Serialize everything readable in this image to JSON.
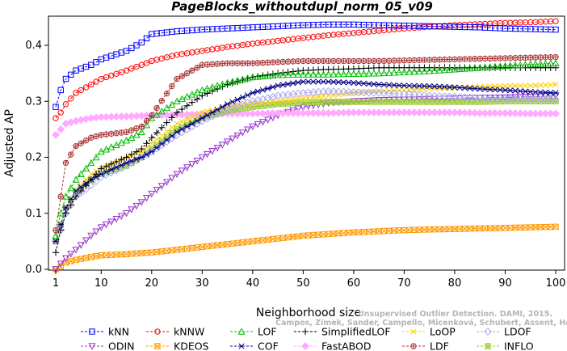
{
  "chart_data": {
    "type": "line",
    "title": "PageBlocks_withoutdupl_norm_05_v09",
    "xlabel": "Neighborhood size",
    "ylabel": "Adjusted AP",
    "xlim": [
      1,
      100
    ],
    "ylim": [
      0,
      0.45
    ],
    "xticks": [
      "1",
      "10",
      "20",
      "30",
      "40",
      "50",
      "60",
      "70",
      "80",
      "90",
      "100"
    ],
    "yticks": [
      "0.0",
      "0.1",
      "0.2",
      "0.3",
      "0.4"
    ],
    "grid": false,
    "legend_position": "bottom",
    "x_knots": [
      1,
      2,
      3,
      5,
      8,
      10,
      15,
      18,
      20,
      25,
      30,
      35,
      40,
      45,
      50,
      55,
      60,
      65,
      70,
      75,
      80,
      85,
      90,
      95,
      100
    ],
    "series": [
      {
        "name": "kNN",
        "color": "#0000ff",
        "marker": "square",
        "line": "dashed",
        "values": [
          0.29,
          0.32,
          0.34,
          0.355,
          0.365,
          0.375,
          0.39,
          0.405,
          0.42,
          0.425,
          0.428,
          0.43,
          0.432,
          0.434,
          0.436,
          0.437,
          0.437,
          0.436,
          0.435,
          0.434,
          0.433,
          0.432,
          0.43,
          0.429,
          0.428
        ]
      },
      {
        "name": "kNNW",
        "color": "#ff0000",
        "marker": "circle",
        "line": "dashed",
        "values": [
          0.27,
          0.28,
          0.295,
          0.315,
          0.33,
          0.34,
          0.355,
          0.365,
          0.372,
          0.383,
          0.39,
          0.397,
          0.403,
          0.408,
          0.413,
          0.418,
          0.422,
          0.426,
          0.43,
          0.433,
          0.436,
          0.438,
          0.44,
          0.441,
          0.443
        ]
      },
      {
        "name": "LOF",
        "color": "#00bb00",
        "marker": "triangle-up",
        "line": "dashed",
        "values": [
          0.06,
          0.1,
          0.13,
          0.16,
          0.19,
          0.21,
          0.23,
          0.245,
          0.27,
          0.3,
          0.32,
          0.333,
          0.343,
          0.347,
          0.348,
          0.348,
          0.349,
          0.35,
          0.352,
          0.354,
          0.357,
          0.36,
          0.363,
          0.366,
          0.368
        ]
      },
      {
        "name": "SimplifiedLOF",
        "color": "#000000",
        "marker": "plus",
        "line": "dashed",
        "values": [
          0.03,
          0.07,
          0.1,
          0.13,
          0.16,
          0.18,
          0.2,
          0.215,
          0.235,
          0.28,
          0.31,
          0.33,
          0.343,
          0.35,
          0.355,
          0.357,
          0.358,
          0.36,
          0.36,
          0.36,
          0.36,
          0.36,
          0.36,
          0.36,
          0.36
        ]
      },
      {
        "name": "LoOP",
        "color": "#ffcc00",
        "marker": "x",
        "line": "dashed",
        "values": [
          0.05,
          0.08,
          0.11,
          0.14,
          0.17,
          0.18,
          0.2,
          0.21,
          0.225,
          0.26,
          0.28,
          0.29,
          0.297,
          0.3,
          0.305,
          0.31,
          0.315,
          0.318,
          0.32,
          0.322,
          0.324,
          0.326,
          0.327,
          0.328,
          0.33
        ]
      },
      {
        "name": "LDOF",
        "color": "#aaaaee",
        "marker": "diamond",
        "line": "dashed",
        "values": [
          0.05,
          0.07,
          0.1,
          0.13,
          0.15,
          0.165,
          0.185,
          0.2,
          0.21,
          0.24,
          0.265,
          0.285,
          0.3,
          0.31,
          0.315,
          0.318,
          0.316,
          0.315,
          0.313,
          0.31,
          0.308,
          0.306,
          0.305,
          0.304,
          0.303
        ]
      },
      {
        "name": "ODIN",
        "color": "#9933cc",
        "marker": "triangle-down",
        "line": "dashed",
        "values": [
          0.0,
          0.01,
          0.02,
          0.035,
          0.06,
          0.075,
          0.1,
          0.12,
          0.135,
          0.17,
          0.2,
          0.228,
          0.255,
          0.275,
          0.29,
          0.297,
          0.3,
          0.302,
          0.303,
          0.304,
          0.305,
          0.306,
          0.307,
          0.308,
          0.31
        ]
      },
      {
        "name": "KDEOS",
        "color": "#ff9900",
        "marker": "square-x",
        "line": "dashed",
        "values": [
          0.0,
          0.005,
          0.012,
          0.017,
          0.022,
          0.025,
          0.027,
          0.029,
          0.03,
          0.035,
          0.04,
          0.045,
          0.05,
          0.055,
          0.06,
          0.063,
          0.066,
          0.068,
          0.07,
          0.071,
          0.072,
          0.073,
          0.074,
          0.075,
          0.076
        ]
      },
      {
        "name": "COF",
        "color": "#000088",
        "marker": "asterisk",
        "line": "dashed",
        "values": [
          0.05,
          0.08,
          0.11,
          0.14,
          0.16,
          0.17,
          0.19,
          0.2,
          0.21,
          0.245,
          0.27,
          0.295,
          0.315,
          0.328,
          0.335,
          0.335,
          0.333,
          0.33,
          0.328,
          0.327,
          0.325,
          0.322,
          0.32,
          0.317,
          0.315
        ]
      },
      {
        "name": "FastABOD",
        "color": "#ffaaff",
        "marker": "diamond-filled",
        "line": "dashed",
        "values": [
          0.24,
          0.25,
          0.26,
          0.265,
          0.27,
          0.272,
          0.273,
          0.274,
          0.275,
          0.276,
          0.277,
          0.278,
          0.278,
          0.279,
          0.279,
          0.279,
          0.28,
          0.28,
          0.28,
          0.28,
          0.28,
          0.279,
          0.279,
          0.278,
          0.278
        ]
      },
      {
        "name": "LDF",
        "color": "#aa3333",
        "marker": "circle-plus",
        "line": "dashed",
        "values": [
          0.07,
          0.13,
          0.19,
          0.22,
          0.235,
          0.24,
          0.245,
          0.255,
          0.275,
          0.34,
          0.365,
          0.368,
          0.368,
          0.37,
          0.372,
          0.372,
          0.372,
          0.372,
          0.373,
          0.374,
          0.375,
          0.376,
          0.377,
          0.378,
          0.379
        ]
      },
      {
        "name": "INFLO",
        "color": "#99cc33",
        "marker": "square-plus",
        "line": "dashed",
        "values": [
          0.05,
          0.08,
          0.11,
          0.14,
          0.16,
          0.17,
          0.185,
          0.2,
          0.215,
          0.25,
          0.27,
          0.283,
          0.29,
          0.295,
          0.298,
          0.299,
          0.299,
          0.299,
          0.299,
          0.299,
          0.299,
          0.299,
          0.3,
          0.3,
          0.3
        ]
      }
    ],
    "annotation_line1": "Campos, Zimek, Sander, Campello, Micenková, Schubert, Assent, Houle",
    "annotation_line2": "Unsupervised Outlier Detection. DAMI, 2015."
  }
}
